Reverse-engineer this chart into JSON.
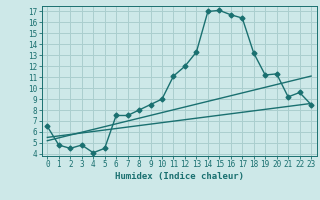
{
  "xlabel": "Humidex (Indice chaleur)",
  "bg_color": "#cde8e8",
  "grid_color": "#aacece",
  "line_color": "#1a7070",
  "xlim": [
    -0.5,
    23.5
  ],
  "ylim": [
    3.8,
    17.5
  ],
  "xticks": [
    0,
    1,
    2,
    3,
    4,
    5,
    6,
    7,
    8,
    9,
    10,
    11,
    12,
    13,
    14,
    15,
    16,
    17,
    18,
    19,
    20,
    21,
    22,
    23
  ],
  "yticks": [
    4,
    5,
    6,
    7,
    8,
    9,
    10,
    11,
    12,
    13,
    14,
    15,
    16,
    17
  ],
  "curve1_x": [
    0,
    1,
    2,
    3,
    4,
    5,
    6,
    7,
    8,
    9,
    10,
    11,
    12,
    13,
    14,
    15,
    16,
    17,
    18,
    19,
    20,
    21,
    22,
    23
  ],
  "curve1_y": [
    6.5,
    4.8,
    4.5,
    4.8,
    4.1,
    4.5,
    7.5,
    7.5,
    8.0,
    8.5,
    9.0,
    11.1,
    12.0,
    13.3,
    17.0,
    17.1,
    16.7,
    16.4,
    13.2,
    11.2,
    11.3,
    9.2,
    9.6,
    8.5
  ],
  "line2_x": [
    0,
    23
  ],
  "line2_y": [
    5.5,
    8.6
  ],
  "line3_x": [
    0,
    23
  ],
  "line3_y": [
    5.2,
    11.1
  ],
  "marker": "D",
  "markersize": 2.5,
  "linewidth": 1.0
}
